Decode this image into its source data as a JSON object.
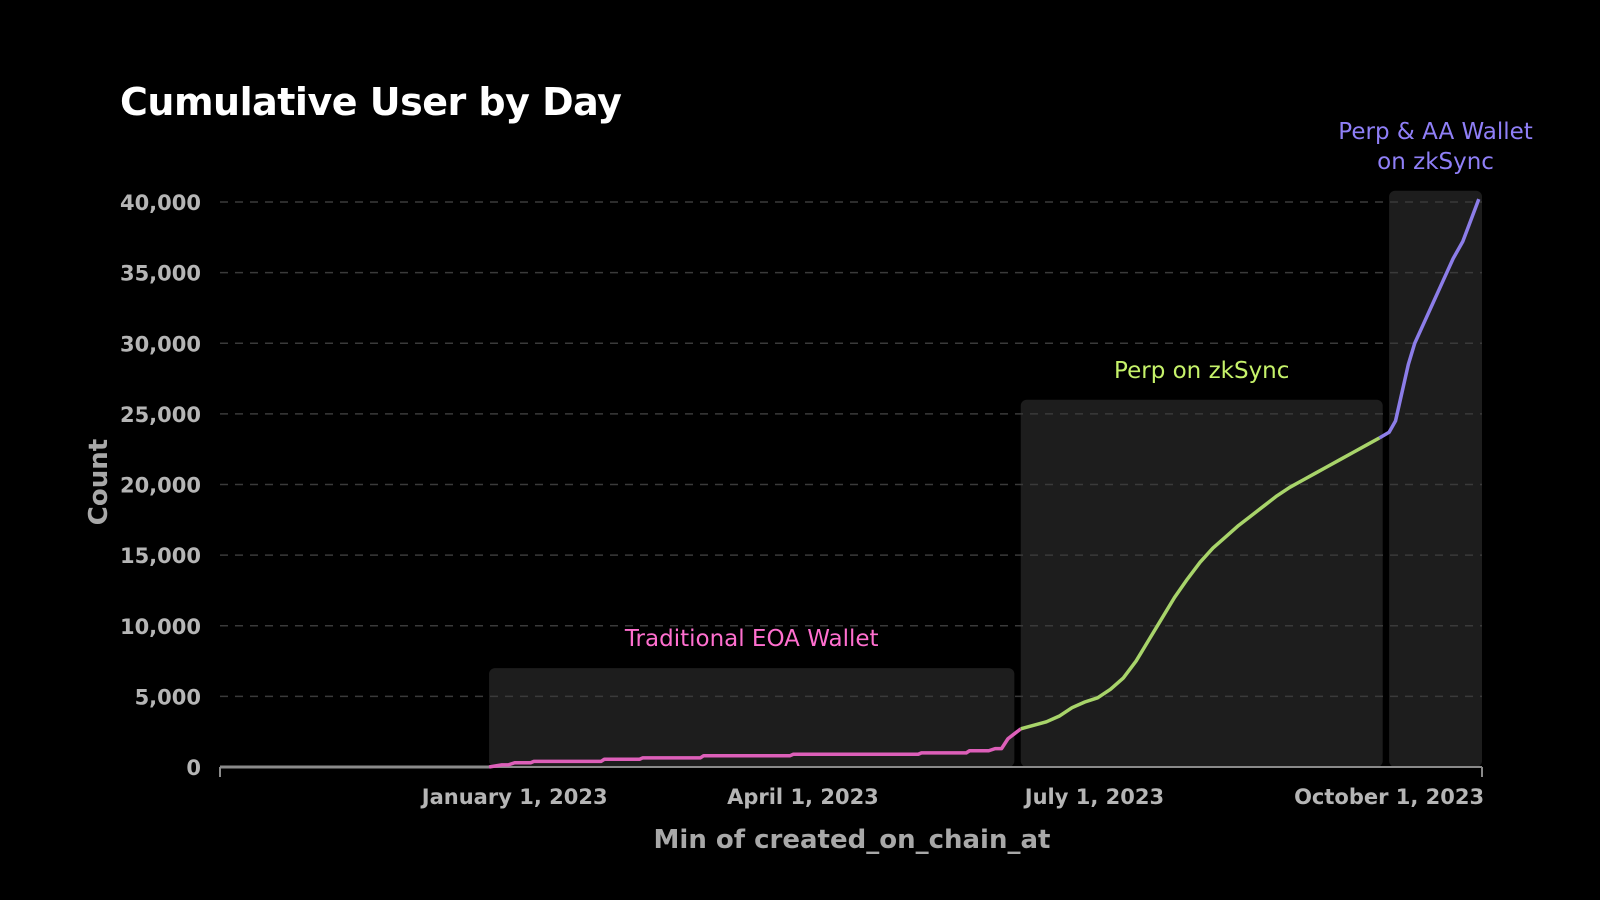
{
  "chart_data": {
    "type": "line",
    "title": "Cumulative User by Day",
    "xlabel": "Min of created_on_chain_at",
    "ylabel": "Count",
    "ylim": [
      0,
      40000
    ],
    "yticks": [
      0,
      5000,
      10000,
      15000,
      20000,
      25000,
      30000,
      35000,
      40000
    ],
    "ytick_labels": [
      "0",
      "5,000",
      "10,000",
      "15,000",
      "20,000",
      "25,000",
      "30,000",
      "35,000",
      "40,000"
    ],
    "xlim": [
      "2022-10-01",
      "2023-10-30"
    ],
    "xticks": [
      {
        "date": "2023-01-01",
        "label": "January 1, 2023"
      },
      {
        "date": "2023-04-01",
        "label": "April 1, 2023"
      },
      {
        "date": "2023-07-01",
        "label": "July 1, 2023"
      },
      {
        "date": "2023-10-01",
        "label": "October 1, 2023"
      }
    ],
    "grid": true,
    "colors": {
      "eoa": "#dd5fb9",
      "perp": "#a8d46a",
      "aa": "#8c7de8"
    },
    "phases": [
      {
        "label": "Traditional EOA Wallet",
        "start": "2022-12-24",
        "end": "2023-06-06",
        "box_top": 7000,
        "color": "#ff6fcf"
      },
      {
        "label": "Perp on zkSync",
        "start": "2023-06-08",
        "end": "2023-09-29",
        "box_top": 26000,
        "color": "#c6f26a"
      },
      {
        "label": "Perp & AA Wallet on zkSync",
        "start": "2023-10-01",
        "end": "2023-10-30",
        "box_top": 40800,
        "color": "#8f7ff7"
      }
    ],
    "series": [
      {
        "points": [
          [
            "2022-10-01",
            0
          ],
          [
            "2022-12-24",
            0
          ],
          [
            "2022-12-28",
            150
          ],
          [
            "2022-12-30",
            150
          ],
          [
            "2023-01-01",
            300
          ],
          [
            "2023-01-06",
            300
          ],
          [
            "2023-01-07",
            400
          ],
          [
            "2023-01-28",
            400
          ],
          [
            "2023-01-29",
            550
          ],
          [
            "2023-02-09",
            550
          ],
          [
            "2023-02-10",
            650
          ],
          [
            "2023-02-28",
            650
          ],
          [
            "2023-03-01",
            800
          ],
          [
            "2023-03-28",
            800
          ],
          [
            "2023-03-29",
            900
          ],
          [
            "2023-05-07",
            900
          ],
          [
            "2023-05-08",
            1000
          ],
          [
            "2023-05-22",
            1000
          ],
          [
            "2023-05-23",
            1150
          ],
          [
            "2023-05-29",
            1150
          ],
          [
            "2023-05-31",
            1300
          ],
          [
            "2023-06-02",
            1300
          ],
          [
            "2023-06-04",
            2000
          ],
          [
            "2023-06-08",
            2700
          ]
        ]
      },
      {
        "points": [
          [
            "2023-06-08",
            2700
          ],
          [
            "2023-06-12",
            2950
          ],
          [
            "2023-06-16",
            3200
          ],
          [
            "2023-06-20",
            3600
          ],
          [
            "2023-06-24",
            4200
          ],
          [
            "2023-06-28",
            4600
          ],
          [
            "2023-07-02",
            4900
          ],
          [
            "2023-07-06",
            5500
          ],
          [
            "2023-07-10",
            6300
          ],
          [
            "2023-07-14",
            7500
          ],
          [
            "2023-07-18",
            9000
          ],
          [
            "2023-07-22",
            10500
          ],
          [
            "2023-07-26",
            12000
          ],
          [
            "2023-07-30",
            13300
          ],
          [
            "2023-08-03",
            14500
          ],
          [
            "2023-08-07",
            15500
          ],
          [
            "2023-08-11",
            16300
          ],
          [
            "2023-08-15",
            17100
          ],
          [
            "2023-08-19",
            17800
          ],
          [
            "2023-08-23",
            18500
          ],
          [
            "2023-08-27",
            19200
          ],
          [
            "2023-08-31",
            19800
          ],
          [
            "2023-09-04",
            20300
          ],
          [
            "2023-09-08",
            20800
          ],
          [
            "2023-09-12",
            21300
          ],
          [
            "2023-09-16",
            21800
          ],
          [
            "2023-09-20",
            22300
          ],
          [
            "2023-09-24",
            22800
          ],
          [
            "2023-09-28",
            23300
          ]
        ]
      },
      {
        "points": [
          [
            "2023-09-28",
            23300
          ],
          [
            "2023-10-01",
            23700
          ],
          [
            "2023-10-03",
            24500
          ],
          [
            "2023-10-05",
            26500
          ],
          [
            "2023-10-07",
            28500
          ],
          [
            "2023-10-09",
            30000
          ],
          [
            "2023-10-12",
            31500
          ],
          [
            "2023-10-15",
            33000
          ],
          [
            "2023-10-18",
            34500
          ],
          [
            "2023-10-21",
            36000
          ],
          [
            "2023-10-24",
            37200
          ],
          [
            "2023-10-27",
            39000
          ],
          [
            "2023-10-29",
            40200
          ]
        ]
      }
    ]
  }
}
